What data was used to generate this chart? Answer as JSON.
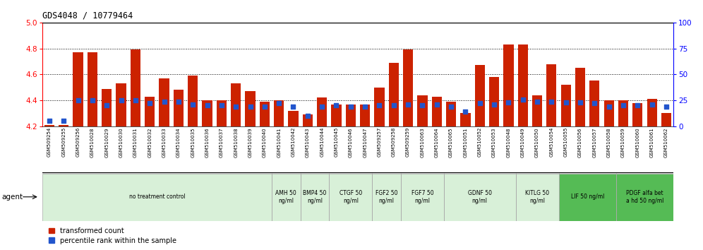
{
  "title": "GDS4048 / 10779464",
  "samples": [
    "GSM509254",
    "GSM509255",
    "GSM509256",
    "GSM510028",
    "GSM510029",
    "GSM510030",
    "GSM510031",
    "GSM510032",
    "GSM510033",
    "GSM510034",
    "GSM510035",
    "GSM510036",
    "GSM510037",
    "GSM510038",
    "GSM510039",
    "GSM510040",
    "GSM510041",
    "GSM510042",
    "GSM510043",
    "GSM510044",
    "GSM510045",
    "GSM510046",
    "GSM510047",
    "GSM509257",
    "GSM509258",
    "GSM509259",
    "GSM510063",
    "GSM510064",
    "GSM510065",
    "GSM510051",
    "GSM510052",
    "GSM510053",
    "GSM510048",
    "GSM510049",
    "GSM510050",
    "GSM510054",
    "GSM510055",
    "GSM510056",
    "GSM510057",
    "GSM510058",
    "GSM510059",
    "GSM510060",
    "GSM510061",
    "GSM510062"
  ],
  "bar_values": [
    4.21,
    4.21,
    4.77,
    4.77,
    4.49,
    4.53,
    4.79,
    4.43,
    4.57,
    4.48,
    4.59,
    4.4,
    4.4,
    4.53,
    4.47,
    4.39,
    4.4,
    4.32,
    4.29,
    4.42,
    4.37,
    4.37,
    4.37,
    4.5,
    4.69,
    4.79,
    4.44,
    4.43,
    4.39,
    4.3,
    4.67,
    4.58,
    4.83,
    4.83,
    4.44,
    4.68,
    4.52,
    4.65,
    4.55,
    4.4,
    4.4,
    4.38,
    4.41,
    4.3
  ],
  "blue_percentiles": [
    5,
    5,
    25,
    25,
    20,
    25,
    25,
    22,
    24,
    24,
    21,
    20,
    20,
    19,
    19,
    19,
    22,
    19,
    10,
    19,
    20,
    19,
    19,
    20,
    20,
    21,
    20,
    21,
    19,
    14,
    22,
    21,
    23,
    26,
    24,
    24,
    23,
    23,
    22,
    19,
    20,
    20,
    21,
    19
  ],
  "ylim_left": [
    4.2,
    5.0
  ],
  "ylim_right": [
    0,
    100
  ],
  "yticks_left": [
    4.2,
    4.4,
    4.6,
    4.8,
    5.0
  ],
  "yticks_right": [
    0,
    25,
    50,
    75,
    100
  ],
  "grid_lines": [
    4.4,
    4.6,
    4.8
  ],
  "bar_color": "#cc2200",
  "blue_color": "#2255cc",
  "bg_chart": "#ffffff",
  "agent_groups": [
    {
      "label": "no treatment control",
      "start": 0,
      "end": 16,
      "color": "#d8f0d8"
    },
    {
      "label": "AMH 50\nng/ml",
      "start": 16,
      "end": 18,
      "color": "#d8f0d8"
    },
    {
      "label": "BMP4 50\nng/ml",
      "start": 18,
      "end": 20,
      "color": "#d8f0d8"
    },
    {
      "label": "CTGF 50\nng/ml",
      "start": 20,
      "end": 23,
      "color": "#d8f0d8"
    },
    {
      "label": "FGF2 50\nng/ml",
      "start": 23,
      "end": 25,
      "color": "#d8f0d8"
    },
    {
      "label": "FGF7 50\nng/ml",
      "start": 25,
      "end": 28,
      "color": "#d8f0d8"
    },
    {
      "label": "GDNF 50\nng/ml",
      "start": 28,
      "end": 33,
      "color": "#d8f0d8"
    },
    {
      "label": "KITLG 50\nng/ml",
      "start": 33,
      "end": 36,
      "color": "#d8f0d8"
    },
    {
      "label": "LIF 50 ng/ml",
      "start": 36,
      "end": 40,
      "color": "#55bb55"
    },
    {
      "label": "PDGF alfa bet\na hd 50 ng/ml",
      "start": 40,
      "end": 44,
      "color": "#55bb55"
    }
  ]
}
